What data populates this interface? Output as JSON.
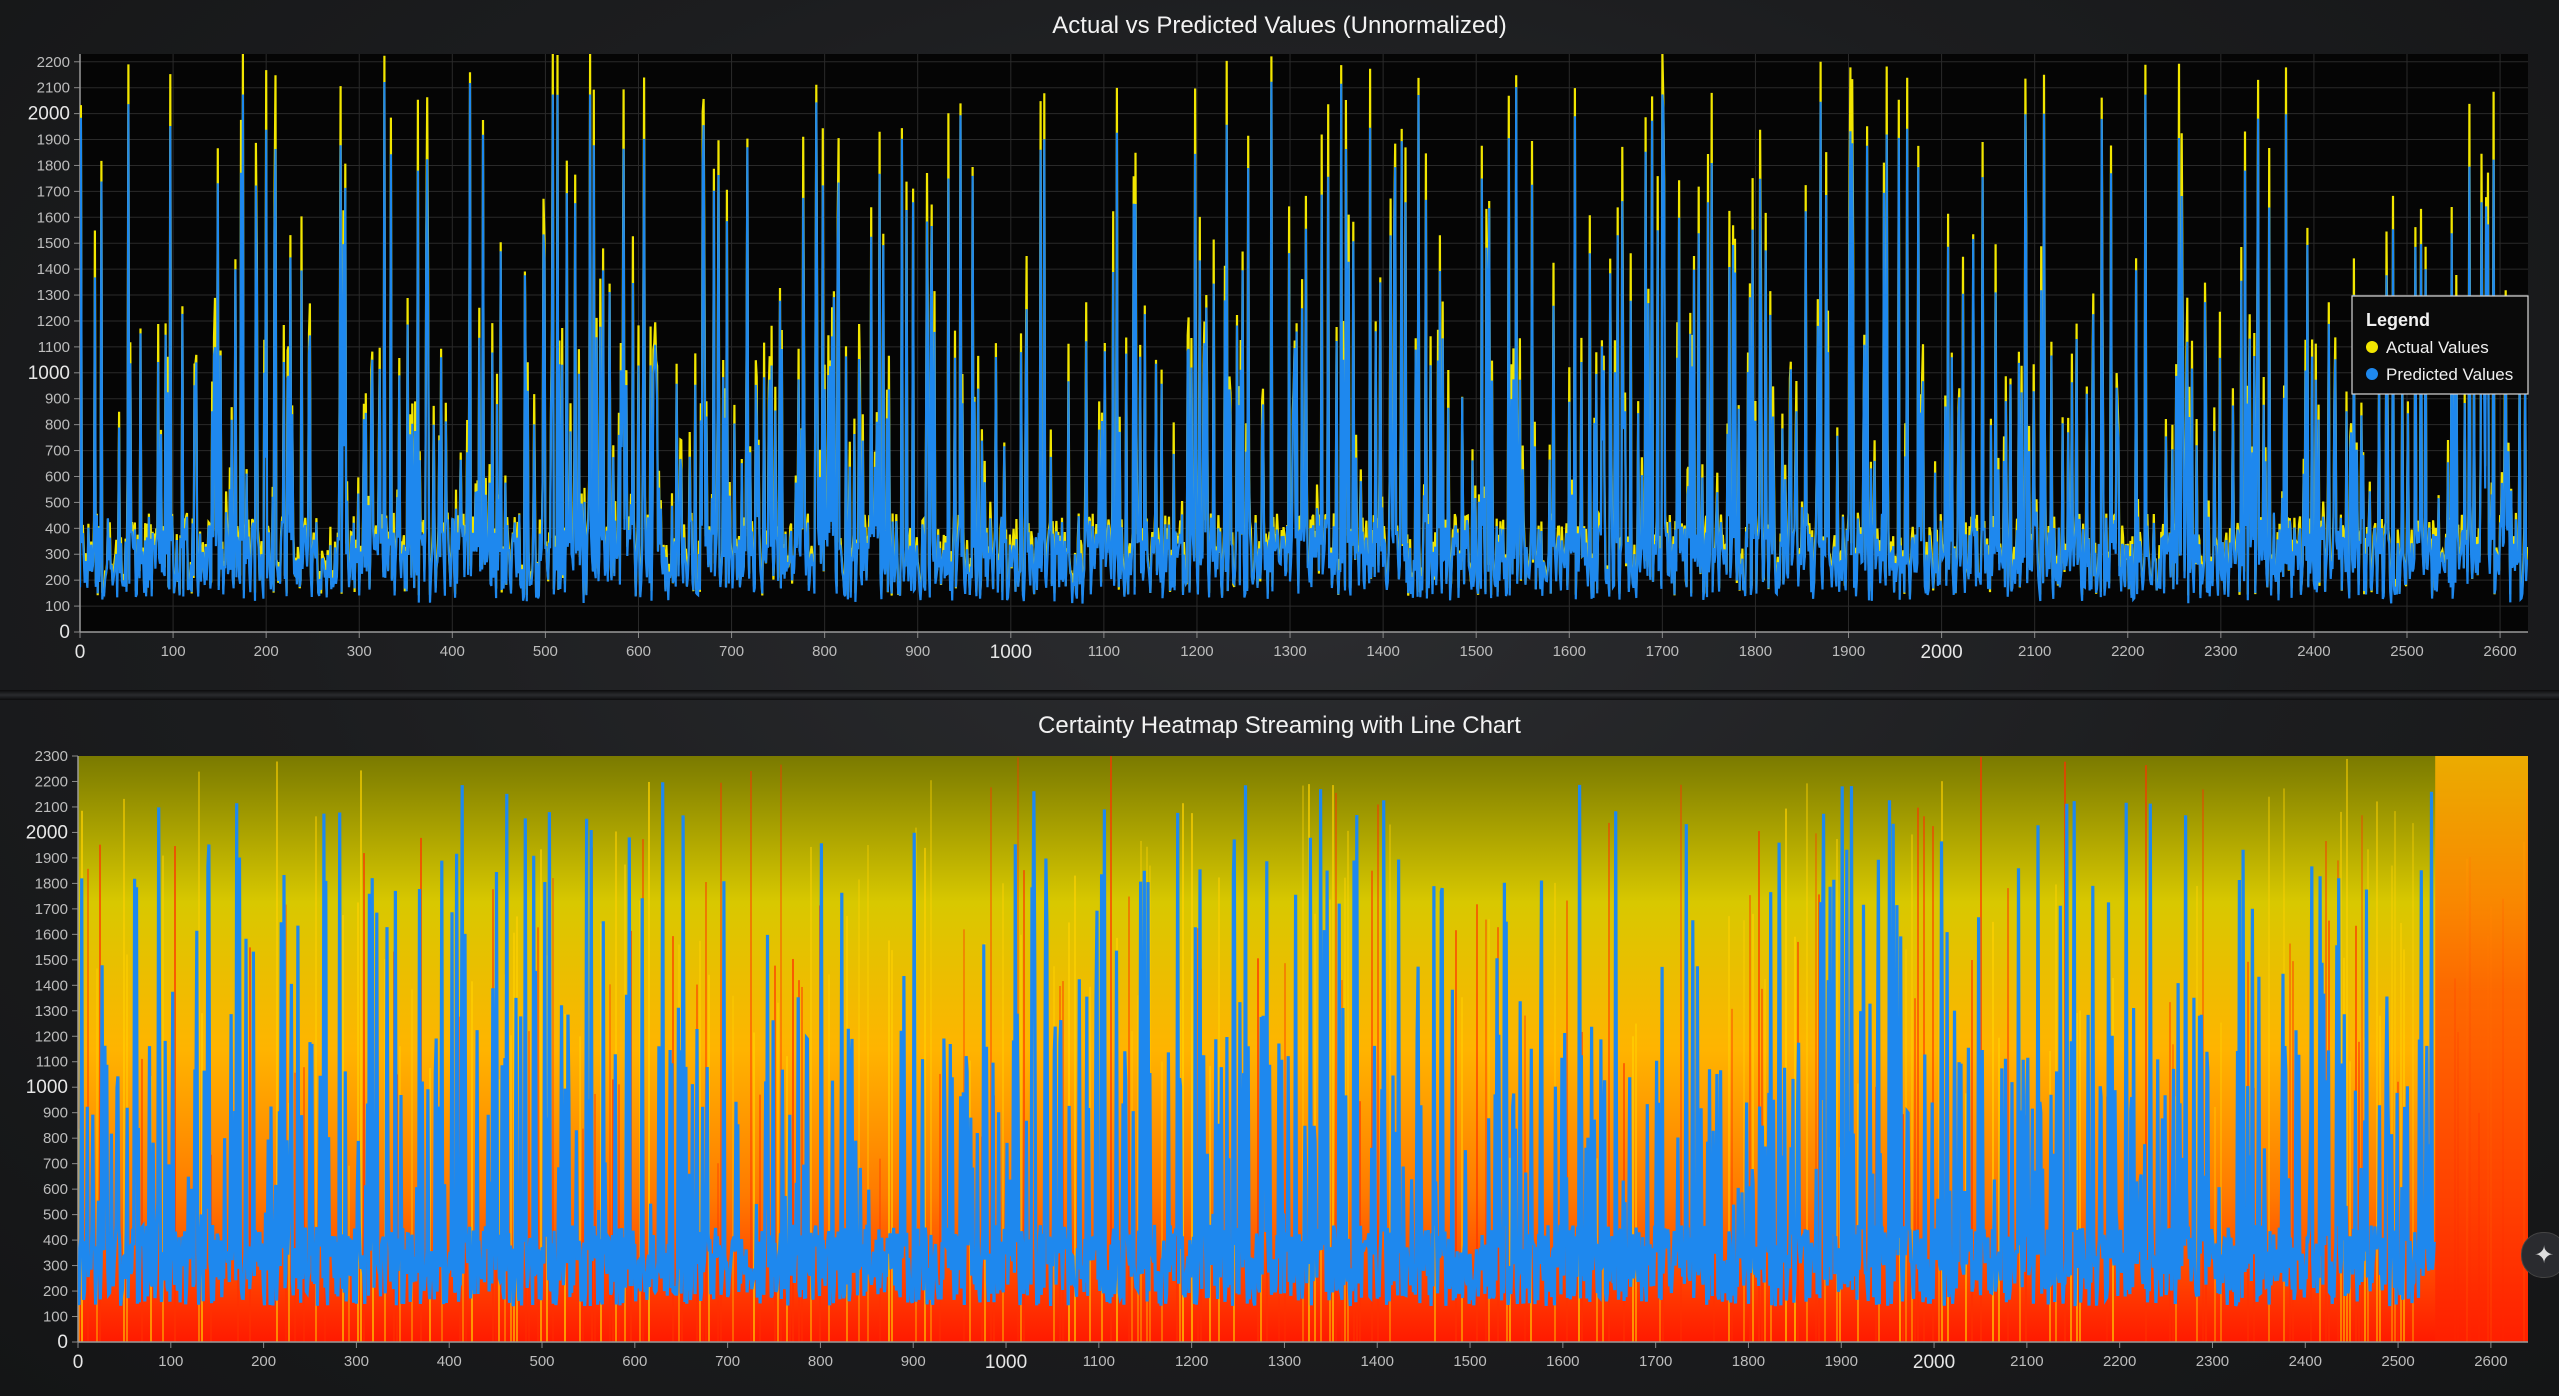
{
  "charts": [
    {
      "title": "Actual vs Predicted Values (Unnormalized)",
      "legend": {
        "title": "Legend",
        "position": "right",
        "entries": [
          {
            "label": "Actual Values",
            "color": "#f2e600"
          },
          {
            "label": "Predicted Values",
            "color": "#1e88ee"
          }
        ]
      }
    },
    {
      "title": "Certainty Heatmap Streaming with Line Chart"
    }
  ],
  "chart_data": [
    {
      "type": "line",
      "title": "Actual vs Predicted Values (Unnormalized)",
      "xlabel": "",
      "ylabel": "",
      "xlim": [
        0,
        2630
      ],
      "ylim": [
        0,
        2230
      ],
      "x_ticks": [
        0,
        100,
        200,
        300,
        400,
        500,
        600,
        700,
        800,
        900,
        1000,
        1100,
        1200,
        1300,
        1400,
        1500,
        1600,
        1700,
        1800,
        1900,
        2000,
        2100,
        2200,
        2300,
        2400,
        2500,
        2600
      ],
      "y_ticks": [
        0,
        100,
        200,
        300,
        400,
        500,
        600,
        700,
        800,
        900,
        1000,
        1100,
        1200,
        1300,
        1400,
        1500,
        1600,
        1700,
        1800,
        1900,
        2000,
        2100,
        2200
      ],
      "grid": true,
      "legend_position": "right",
      "x_count": 2630,
      "series": [
        {
          "name": "Actual Values",
          "color": "#f2e600",
          "typical_range": [
            20,
            2230
          ],
          "baseline": 300
        },
        {
          "name": "Predicted Values",
          "color": "#1e88ee",
          "typical_range": [
            0,
            2100
          ],
          "baseline": 300
        }
      ],
      "notable_peaks": [
        {
          "x": 52,
          "y": 2190
        },
        {
          "x": 175,
          "y": 2230
        },
        {
          "x": 508,
          "y": 2230
        },
        {
          "x": 548,
          "y": 2230
        },
        {
          "x": 1700,
          "y": 2230
        },
        {
          "x": 1870,
          "y": 2200
        },
        {
          "x": 2110,
          "y": 2150
        },
        {
          "x": 2340,
          "y": 2130
        }
      ]
    },
    {
      "type": "heatmap",
      "title": "Certainty Heatmap Streaming with Line Chart",
      "xlabel": "",
      "ylabel": "",
      "xlim": [
        0,
        2640
      ],
      "ylim": [
        0,
        2300
      ],
      "x_ticks": [
        0,
        100,
        200,
        300,
        400,
        500,
        600,
        700,
        800,
        900,
        1000,
        1100,
        1200,
        1300,
        1400,
        1500,
        1600,
        1700,
        1800,
        1900,
        2000,
        2100,
        2200,
        2300,
        2400,
        2500,
        2600
      ],
      "y_ticks": [
        0,
        100,
        200,
        300,
        400,
        500,
        600,
        700,
        800,
        900,
        1000,
        1100,
        1200,
        1300,
        1400,
        1500,
        1600,
        1700,
        1800,
        1900,
        2000,
        2100,
        2200,
        2300
      ],
      "grid": false,
      "colormap": [
        "#ff1a00",
        "#ff7a00",
        "#ffb400",
        "#d8c800",
        "#7a7a00"
      ],
      "heatmap_x_end": 2640,
      "line_series": [
        {
          "name": "Predicted Values",
          "color": "#1e88ee",
          "x_end": 2540,
          "typical_range": [
            50,
            2200
          ],
          "baseline": 300
        }
      ]
    }
  ]
}
